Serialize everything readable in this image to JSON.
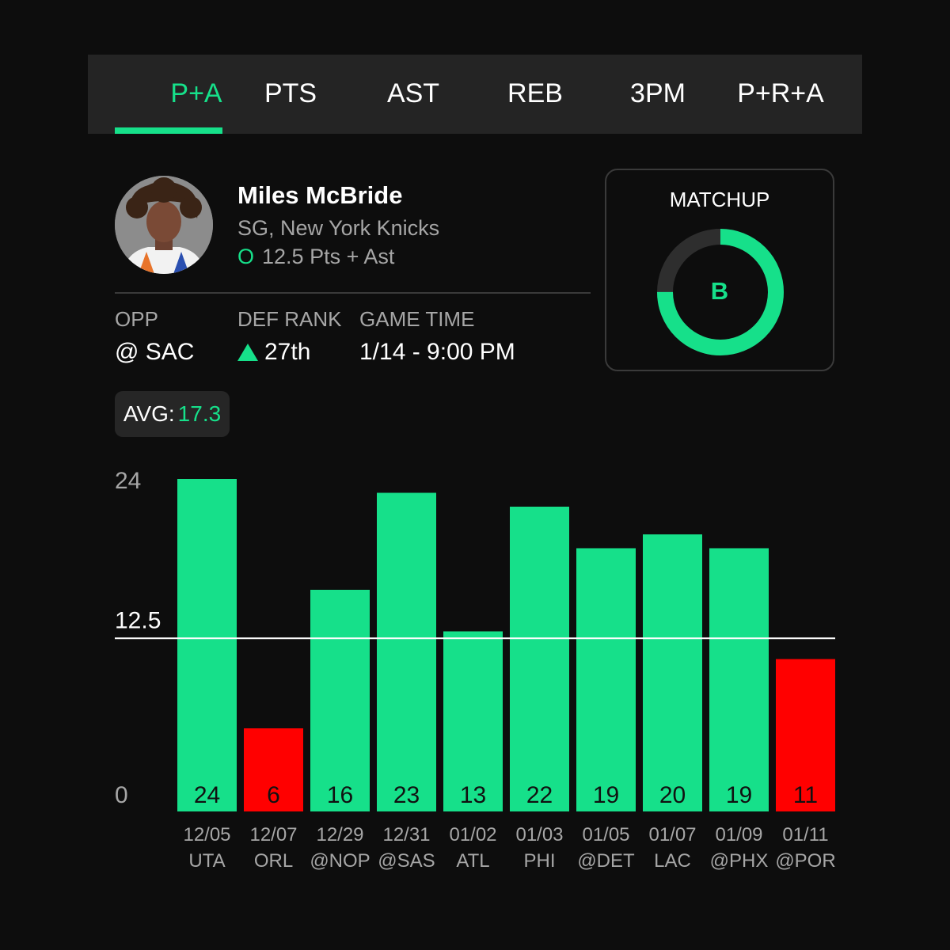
{
  "tabs": [
    {
      "label": "P+A",
      "active": true
    },
    {
      "label": "PTS",
      "active": false
    },
    {
      "label": "AST",
      "active": false
    },
    {
      "label": "REB",
      "active": false
    },
    {
      "label": "3PM",
      "active": false
    },
    {
      "label": "P+R+A",
      "active": false
    }
  ],
  "player": {
    "name": "Miles McBride",
    "team": "SG, New York Knicks",
    "pick": "O",
    "line": "12.5 Pts + Ast"
  },
  "stats": {
    "opp_label": "OPP",
    "opp_value": "@ SAC",
    "def_rank_label": "DEF RANK",
    "def_rank_value": "27th",
    "game_time_label": "GAME TIME",
    "game_time_value": "1/14 - 9:00 PM"
  },
  "matchup": {
    "title": "MATCHUP",
    "grade": "B",
    "score_fraction": 0.75
  },
  "avg": {
    "label": "AVG:",
    "value": "17.3"
  },
  "colors": {
    "accent": "#16e08a",
    "miss": "#ff0000",
    "background": "#0d0d0d",
    "panel": "#242424"
  },
  "chart_data": {
    "type": "bar",
    "categories": [
      "12/05 UTA",
      "12/07 ORL",
      "12/29 @NOP",
      "12/31 @SAS",
      "01/02 ATL",
      "01/03 PHI",
      "01/05 @DET",
      "01/07 LAC",
      "01/09 @PHX",
      "01/11 @POR"
    ],
    "dates": [
      "12/05",
      "12/07",
      "12/29",
      "12/31",
      "01/02",
      "01/03",
      "01/05",
      "01/07",
      "01/09",
      "01/11"
    ],
    "opponents": [
      "UTA",
      "ORL",
      "@NOP",
      "@SAS",
      "ATL",
      "PHI",
      "@DET",
      "LAC",
      "@PHX",
      "@POR"
    ],
    "values": [
      24,
      6,
      16,
      23,
      13,
      22,
      19,
      20,
      19,
      11
    ],
    "line": 12.5,
    "yticks": [
      "24",
      "12.5",
      "0"
    ],
    "ylim": [
      0,
      24
    ],
    "grid": false
  }
}
